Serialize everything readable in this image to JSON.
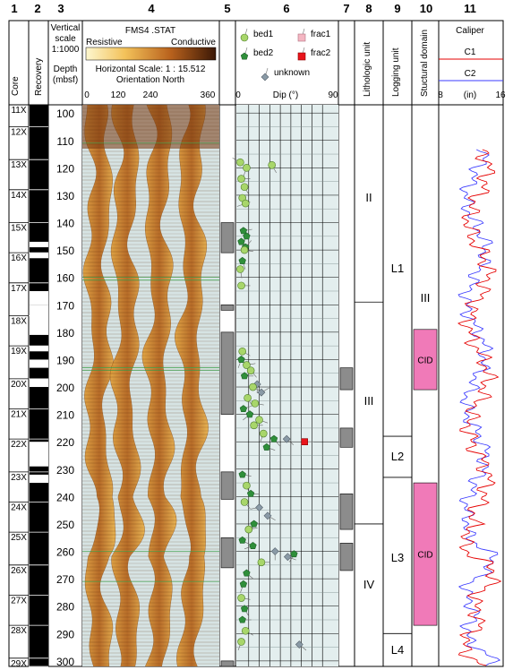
{
  "columns": {
    "numbers": [
      "1",
      "2",
      "3",
      "4",
      "5",
      "6",
      "7",
      "8",
      "9",
      "10",
      "11"
    ],
    "core_title": "Core",
    "recovery_title": "Recovery",
    "depth_title": [
      "Vertical",
      "scale",
      "1:1000",
      "Depth",
      "(mbsf)"
    ],
    "fms_title": "FMS4 .STAT",
    "fms_resistive": "Resistive",
    "fms_conductive": "Conductive",
    "fms_scale": "Horizontal Scale: 1 : 15.512",
    "fms_orientation": "Orientation North",
    "fms_ticks": [
      "0",
      "120",
      "240",
      "360"
    ],
    "dip_legend": [
      "bed1",
      "frac1",
      "bed2",
      "frac2",
      "unknown"
    ],
    "dip_axis_label": "Dip (°)",
    "dip_ticks": [
      "0",
      "90"
    ],
    "lith_title": "Lithologic unit",
    "logging_title": "Logging unit",
    "struct_title": "Stuctural domain",
    "caliper_title": "Caliper",
    "caliper_c1": "C1",
    "caliper_c2": "C2",
    "caliper_axis": [
      "8",
      "(in)",
      "16"
    ]
  },
  "colors": {
    "c1": "#e60000",
    "c2": "#3b3bff",
    "cid": "#f07ab8",
    "bed1": "#a8d66a",
    "bed2": "#2f8f3a",
    "frac1": "#f4b6c2",
    "frac2": "#e8141b",
    "unknown": "#8a9aa6",
    "fms_bg": "#d6e3e3"
  },
  "depth": {
    "min": 97,
    "max": 302,
    "ticks": [
      100,
      110,
      120,
      130,
      140,
      150,
      160,
      170,
      180,
      190,
      200,
      210,
      220,
      230,
      240,
      250,
      260,
      270,
      280,
      290,
      300
    ]
  },
  "cores": [
    {
      "label": "11X",
      "top": 97,
      "bottom": 105
    },
    {
      "label": "12X",
      "top": 105,
      "bottom": 117
    },
    {
      "label": "13X",
      "top": 117,
      "bottom": 128
    },
    {
      "label": "14X",
      "top": 128,
      "bottom": 140
    },
    {
      "label": "15X",
      "top": 140,
      "bottom": 151
    },
    {
      "label": "16X",
      "top": 151,
      "bottom": 162
    },
    {
      "label": "17X",
      "top": 162,
      "bottom": 174
    },
    {
      "label": "18X",
      "top": 174,
      "bottom": 185
    },
    {
      "label": "19X",
      "top": 185,
      "bottom": 197
    },
    {
      "label": "20X",
      "top": 197,
      "bottom": 208
    },
    {
      "label": "21X",
      "top": 208,
      "bottom": 219
    },
    {
      "label": "22X",
      "top": 219,
      "bottom": 231
    },
    {
      "label": "23X",
      "top": 231,
      "bottom": 242
    },
    {
      "label": "24X",
      "top": 242,
      "bottom": 253
    },
    {
      "label": "25X",
      "top": 253,
      "bottom": 265
    },
    {
      "label": "26X",
      "top": 265,
      "bottom": 276
    },
    {
      "label": "27X",
      "top": 276,
      "bottom": 287
    },
    {
      "label": "28X",
      "top": 287,
      "bottom": 299
    },
    {
      "label": "29X",
      "top": 299,
      "bottom": 302
    }
  ],
  "recovery_gaps": [
    [
      147,
      149
    ],
    [
      151,
      153
    ],
    [
      165,
      170
    ],
    [
      170,
      181
    ],
    [
      185,
      187
    ],
    [
      190,
      193
    ],
    [
      197,
      200
    ],
    [
      220,
      229
    ],
    [
      232,
      235
    ]
  ],
  "lithologic_units": [
    {
      "label": "II",
      "top": 97,
      "bottom": 169
    },
    {
      "label": "III",
      "top": 169,
      "bottom": 250
    },
    {
      "label": "IV",
      "top": 250,
      "bottom": 302
    }
  ],
  "logging_units": [
    {
      "label": "L1",
      "top": 97,
      "bottom": 218
    },
    {
      "label": "L2",
      "top": 218,
      "bottom": 233
    },
    {
      "label": "L3",
      "top": 233,
      "bottom": 290
    },
    {
      "label": "L4",
      "top": 290,
      "bottom": 302
    }
  ],
  "structural_domains": [
    {
      "label": "III",
      "top": 97,
      "bottom": 302
    }
  ],
  "cid_zones": [
    {
      "label": "CID",
      "top": 179,
      "bottom": 201
    },
    {
      "label": "CID",
      "top": 235,
      "bottom": 287
    }
  ],
  "col5_blocks": [
    [
      140,
      151
    ],
    [
      170,
      172
    ],
    [
      180,
      210
    ],
    [
      231,
      241
    ],
    [
      255,
      266
    ],
    [
      300,
      302
    ]
  ],
  "col7_blocks": [
    [
      193,
      201
    ],
    [
      215,
      222
    ],
    [
      239,
      252
    ],
    [
      257,
      267
    ]
  ],
  "dip_points": [
    {
      "d": 118,
      "dip": 2,
      "az": 300,
      "t": "bed1"
    },
    {
      "d": 120,
      "dip": 8,
      "az": 200,
      "t": "bed1"
    },
    {
      "d": 124,
      "dip": 3,
      "az": 90,
      "t": "bed1"
    },
    {
      "d": 127,
      "dip": 6,
      "az": 150,
      "t": "bed1"
    },
    {
      "d": 131,
      "dip": 4,
      "az": 120,
      "t": "bed1"
    },
    {
      "d": 133,
      "dip": 7,
      "az": 250,
      "t": "bed1"
    },
    {
      "d": 143,
      "dip": 5,
      "az": 80,
      "t": "bed2"
    },
    {
      "d": 145,
      "dip": 8,
      "az": 210,
      "t": "bed2"
    },
    {
      "d": 147,
      "dip": 3,
      "az": 130,
      "t": "bed2"
    },
    {
      "d": 149,
      "dip": 7,
      "az": 40,
      "t": "bed2"
    },
    {
      "d": 150,
      "dip": 6,
      "az": 100,
      "t": "bed1"
    },
    {
      "d": 154,
      "dip": 4,
      "az": 160,
      "t": "bed2"
    },
    {
      "d": 157,
      "dip": 2,
      "az": 170,
      "t": "bed1"
    },
    {
      "d": 163,
      "dip": 3,
      "az": 90,
      "t": "bed1"
    },
    {
      "d": 119,
      "dip": 32,
      "az": 150,
      "t": "bed1"
    },
    {
      "d": 187,
      "dip": 4,
      "az": 120,
      "t": "bed1"
    },
    {
      "d": 190,
      "dip": 3,
      "az": 200,
      "t": "bed2"
    },
    {
      "d": 192,
      "dip": 8,
      "az": 80,
      "t": "bed1"
    },
    {
      "d": 194,
      "dip": 12,
      "az": 140,
      "t": "bed1"
    },
    {
      "d": 196,
      "dip": 6,
      "az": 90,
      "t": "bed2"
    },
    {
      "d": 199,
      "dip": 18,
      "az": 180,
      "t": "unknown"
    },
    {
      "d": 200,
      "dip": 14,
      "az": 120,
      "t": "bed1"
    },
    {
      "d": 202,
      "dip": 22,
      "az": 60,
      "t": "unknown"
    },
    {
      "d": 204,
      "dip": 9,
      "az": 150,
      "t": "bed1"
    },
    {
      "d": 206,
      "dip": 16,
      "az": 100,
      "t": "bed1"
    },
    {
      "d": 208,
      "dip": 5,
      "az": 70,
      "t": "bed2"
    },
    {
      "d": 210,
      "dip": 11,
      "az": 230,
      "t": "bed2"
    },
    {
      "d": 212,
      "dip": 20,
      "az": 110,
      "t": "bed1"
    },
    {
      "d": 214,
      "dip": 15,
      "az": 90,
      "t": "bed1"
    },
    {
      "d": 217,
      "dip": 24,
      "az": 200,
      "t": "bed1"
    },
    {
      "d": 219,
      "dip": 34,
      "az": 140,
      "t": "bed2"
    },
    {
      "d": 219,
      "dip": 46,
      "az": 130,
      "t": "unknown"
    },
    {
      "d": 220,
      "dip": 63,
      "az": 90,
      "t": "frac2"
    },
    {
      "d": 222,
      "dip": 27,
      "az": 110,
      "t": "bed2"
    },
    {
      "d": 232,
      "dip": 4,
      "az": 100,
      "t": "bed2"
    },
    {
      "d": 236,
      "dip": 8,
      "az": 160,
      "t": "bed1"
    },
    {
      "d": 239,
      "dip": 12,
      "az": 90,
      "t": "bed2"
    },
    {
      "d": 242,
      "dip": 6,
      "az": 140,
      "t": "bed1"
    },
    {
      "d": 244,
      "dip": 20,
      "az": 260,
      "t": "unknown"
    },
    {
      "d": 247,
      "dip": 28,
      "az": 120,
      "t": "unknown"
    },
    {
      "d": 250,
      "dip": 15,
      "az": 200,
      "t": "bed2"
    },
    {
      "d": 252,
      "dip": 10,
      "az": 80,
      "t": "bed1"
    },
    {
      "d": 256,
      "dip": 4,
      "az": 120,
      "t": "bed2"
    },
    {
      "d": 258,
      "dip": 14,
      "az": 250,
      "t": "bed2"
    },
    {
      "d": 260,
      "dip": 35,
      "az": 180,
      "t": "unknown"
    },
    {
      "d": 261,
      "dip": 53,
      "az": 210,
      "t": "bed2"
    },
    {
      "d": 262,
      "dip": 47,
      "az": 110,
      "t": "unknown"
    },
    {
      "d": 264,
      "dip": 22,
      "az": 90,
      "t": "bed1"
    },
    {
      "d": 268,
      "dip": 8,
      "az": 130,
      "t": "bed2"
    },
    {
      "d": 272,
      "dip": 5,
      "az": 200,
      "t": "bed2"
    },
    {
      "d": 277,
      "dip": 3,
      "az": 100,
      "t": "bed1"
    },
    {
      "d": 281,
      "dip": 6,
      "az": 150,
      "t": "bed2"
    },
    {
      "d": 285,
      "dip": 4,
      "az": 90,
      "t": "bed2"
    },
    {
      "d": 289,
      "dip": 7,
      "az": 120,
      "t": "bed1"
    },
    {
      "d": 293,
      "dip": 3,
      "az": 200,
      "t": "bed1"
    },
    {
      "d": 294,
      "dip": 58,
      "az": 130,
      "t": "unknown"
    }
  ]
}
